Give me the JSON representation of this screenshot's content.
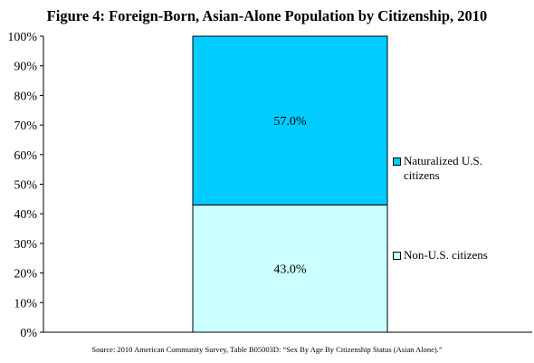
{
  "chart_data": {
    "type": "bar",
    "stacked": true,
    "title": "Figure 4: Foreign-Born, Asian-Alone Population by Citizenship, 2010",
    "categories": [
      ""
    ],
    "series": [
      {
        "name": "Non-U.S. citizens",
        "values": [
          43.0
        ],
        "label": "43.0%",
        "color": "#ccffff"
      },
      {
        "name": "Naturalized U.S. citizens",
        "values": [
          57.0
        ],
        "label": "57.0%",
        "color": "#00ccff"
      }
    ],
    "ylim": [
      0,
      100
    ],
    "yticks": [
      0,
      10,
      20,
      30,
      40,
      50,
      60,
      70,
      80,
      90,
      100
    ],
    "ytick_labels": [
      "0%",
      "10%",
      "20%",
      "30%",
      "40%",
      "50%",
      "60%",
      "70%",
      "80%",
      "90%",
      "100%"
    ],
    "grid": false,
    "legend_position": "right",
    "legend": [
      {
        "label": "Naturalized U.S. citizens",
        "color": "#00ccff"
      },
      {
        "label": "Non-U.S. citizens",
        "color": "#ccffff"
      }
    ]
  },
  "source": "Source: 2010 American Community Survey, Table B05003D: “Sex By Age By Citizenship Status (Asian Alone).”"
}
